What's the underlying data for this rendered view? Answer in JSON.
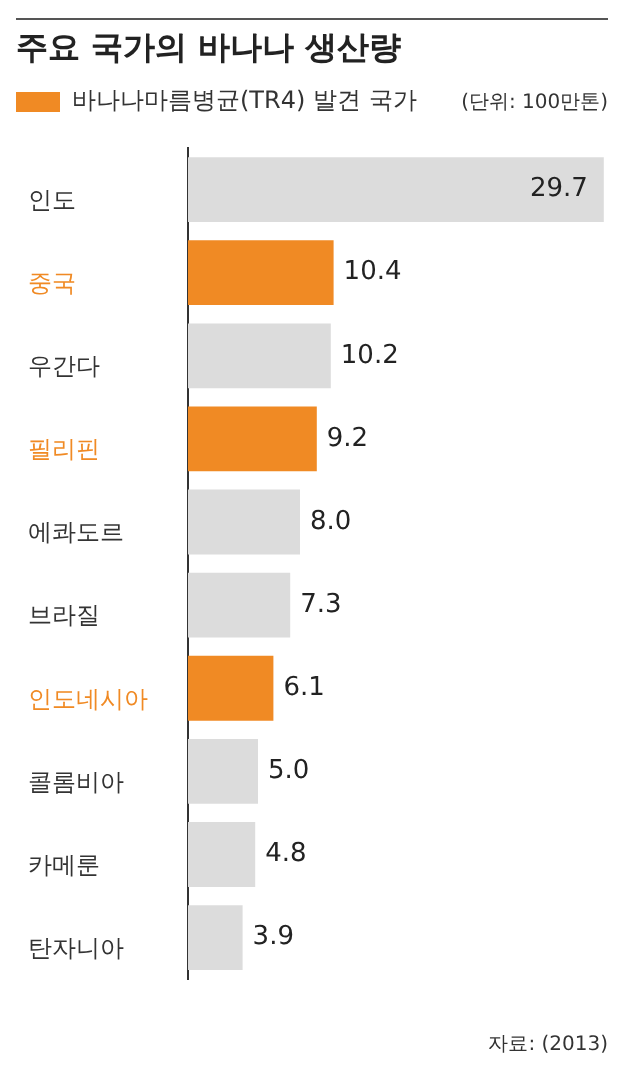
{
  "chart_data": {
    "type": "bar",
    "orientation": "horizontal",
    "stacked": true,
    "title": "주요 국가의 바나나 생산량",
    "categories": [
      "인도",
      "중국",
      "우간다",
      "필리핀",
      "에콰도르",
      "브라질",
      "인도네시아",
      "콜롬비아",
      "카메룬",
      "탄자니아"
    ],
    "series": [
      {
        "name": "바나나마름병균(TR4) 발견 국가",
        "color": "#f08a24",
        "values": [
          null,
          10.4,
          null,
          9.2,
          null,
          null,
          6.1,
          null,
          null,
          null
        ],
        "value_labels": [
          null,
          "10.4",
          null,
          "9.2",
          null,
          null,
          "6.1",
          null,
          null,
          null
        ]
      },
      {
        "color": "#dcdcdc",
        "values": [
          29.7,
          null,
          10.2,
          null,
          8.0,
          7.3,
          null,
          5.0,
          4.8,
          3.9
        ],
        "value_labels": [
          "29.7",
          null,
          "10.2",
          null,
          "8.0",
          "7.3",
          null,
          "5.0",
          "4.8",
          "3.9"
        ]
      }
    ],
    "tick_labels": "y",
    "legend": "top left",
    "annotations": [
      "(단위: 100만톤)",
      "자료: (2013)"
    ]
  }
}
